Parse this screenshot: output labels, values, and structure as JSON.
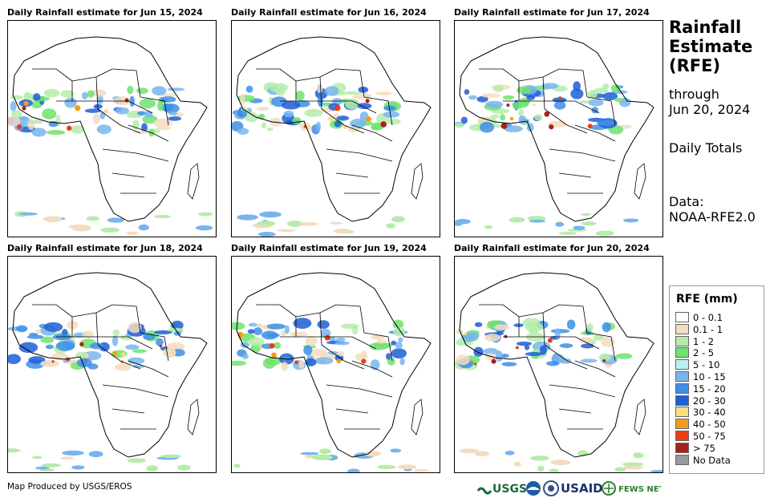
{
  "panels": [
    {
      "title": "Daily Rainfall estimate for Jun 15, 2024"
    },
    {
      "title": "Daily Rainfall estimate for Jun 16, 2024"
    },
    {
      "title": "Daily Rainfall estimate for Jun 17, 2024"
    },
    {
      "title": "Daily Rainfall estimate for Jun 18, 2024"
    },
    {
      "title": "Daily Rainfall estimate for Jun 19, 2024"
    },
    {
      "title": "Daily Rainfall estimate for Jun 20, 2024"
    }
  ],
  "sidebar": {
    "title_line1": "Rainfall",
    "title_line2": "Estimate",
    "title_line3": "(RFE)",
    "through_label": "through",
    "through_date": "Jun 20, 2024",
    "totals": "Daily Totals",
    "data_label": "Data:",
    "data_source": "NOAA-RFE2.0"
  },
  "legend": {
    "title": "RFE (mm)",
    "items": [
      {
        "label": "0 - 0.1",
        "color": "#ffffff"
      },
      {
        "label": "0.1 - 1",
        "color": "#f3dcbf"
      },
      {
        "label": "1 - 2",
        "color": "#b5ecaa"
      },
      {
        "label": "2 - 5",
        "color": "#6fe36f"
      },
      {
        "label": "5 - 10",
        "color": "#b8f1f1"
      },
      {
        "label": "10 - 15",
        "color": "#78b5ee"
      },
      {
        "label": "15 - 20",
        "color": "#3e8ee8"
      },
      {
        "label": "20 - 30",
        "color": "#1c5fd6"
      },
      {
        "label": "30 - 40",
        "color": "#f9dd83"
      },
      {
        "label": "40 - 50",
        "color": "#f39c1b"
      },
      {
        "label": "50 - 75",
        "color": "#ee3d10"
      },
      {
        "label": "> 75",
        "color": "#a8201a"
      },
      {
        "label": "No Data",
        "color": "#9a9a9a"
      }
    ]
  },
  "footer": {
    "credit": "Map Produced by USGS/EROS"
  },
  "logos": {
    "usgs": "USGS",
    "usaid": "USAID",
    "fewsnet": "FEWS NET"
  }
}
